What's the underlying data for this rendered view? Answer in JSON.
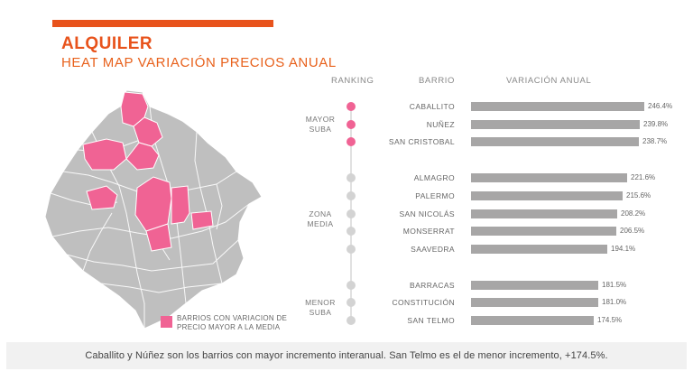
{
  "header": {
    "title": "ALQUILER",
    "subtitle": "HEAT MAP VARIACIÓN PRECIOS ANUAL"
  },
  "colors": {
    "accent": "#e8531c",
    "highlight": "#f06394",
    "neutral": "#bfbfbf",
    "bar": "#a7a6a6"
  },
  "map": {
    "legend_line1": "BARRIOS CON VARIACION DE",
    "legend_line2": "PRECIO MAYOR A LA MEDIA"
  },
  "chart_data": {
    "type": "bar",
    "orientation": "horizontal",
    "columns": {
      "ranking": "RANKING",
      "barrio": "BARRIO",
      "variation": "VARIACIÓN ANUAL"
    },
    "groups": [
      {
        "label_line1": "MAYOR",
        "label_line2": "SUBA",
        "highlight": true,
        "items": [
          {
            "barrio": "CABALLITO",
            "value": 246.4,
            "label": "246.4%"
          },
          {
            "barrio": "NUÑEZ",
            "value": 239.8,
            "label": "239.8%"
          },
          {
            "barrio": "SAN CRISTOBAL",
            "value": 238.7,
            "label": "238.7%"
          }
        ]
      },
      {
        "label_line1": "ZONA",
        "label_line2": "MEDIA",
        "highlight": false,
        "items": [
          {
            "barrio": "ALMAGRO",
            "value": 221.6,
            "label": "221.6%"
          },
          {
            "barrio": "PALERMO",
            "value": 215.6,
            "label": "215.6%"
          },
          {
            "barrio": "SAN NICOLÁS",
            "value": 208.2,
            "label": "208.2%"
          },
          {
            "barrio": "MONSERRAT",
            "value": 206.5,
            "label": "206.5%"
          },
          {
            "barrio": "SAAVEDRA",
            "value": 194.1,
            "label": "194.1%"
          }
        ]
      },
      {
        "label_line1": "MENOR",
        "label_line2": "SUBA",
        "highlight": false,
        "items": [
          {
            "barrio": "BARRACAS",
            "value": 181.5,
            "label": "181.5%"
          },
          {
            "barrio": "CONSTITUCIÓN",
            "value": 181.0,
            "label": "181.0%"
          },
          {
            "barrio": "SAN TELMO",
            "value": 174.5,
            "label": "174.5%"
          }
        ]
      }
    ]
  },
  "footer": {
    "text": "Caballito y Núñez son los barrios con mayor incremento interanual. San Telmo es el de menor incremento, +174.5%."
  }
}
